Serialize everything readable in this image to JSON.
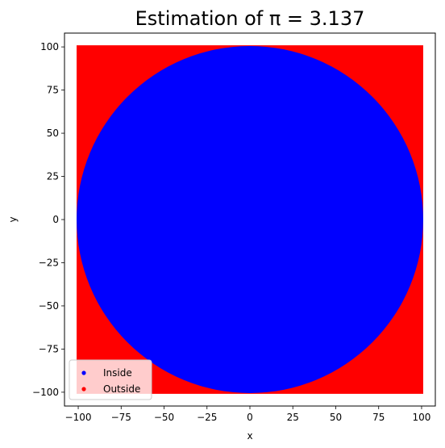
{
  "chart_data": {
    "type": "scatter",
    "title": "Estimation of π = 3.137",
    "xlabel": "x",
    "ylabel": "y",
    "xlim": [
      -108,
      108
    ],
    "ylim": [
      -108,
      108
    ],
    "xticks": [
      -100,
      -75,
      -50,
      -25,
      0,
      25,
      50,
      75,
      100
    ],
    "yticks": [
      -100,
      -75,
      -50,
      -25,
      0,
      25,
      50,
      75,
      100
    ],
    "xtick_labels": [
      "−100",
      "−75",
      "−50",
      "−25",
      "0",
      "25",
      "50",
      "75",
      "100"
    ],
    "ytick_labels": [
      "−100",
      "−75",
      "−50",
      "−25",
      "0",
      "25",
      "50",
      "75",
      "100"
    ],
    "grid": false,
    "legend_position": "lower-left",
    "series": [
      {
        "name": "Inside",
        "color": "#0000ff",
        "region": "circle",
        "center": [
          0,
          0
        ],
        "radius": 100
      },
      {
        "name": "Outside",
        "color": "#ff0000",
        "region": "square-minus-circle",
        "range": [
          -100,
          100
        ]
      }
    ]
  }
}
